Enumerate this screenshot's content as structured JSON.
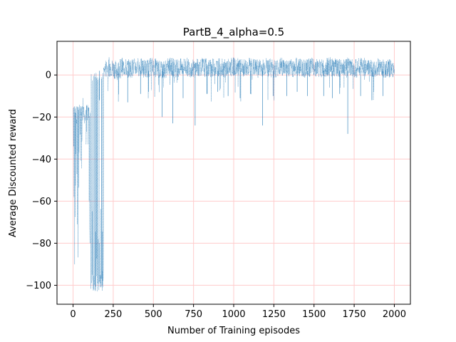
{
  "chart_data": {
    "type": "line",
    "title": "PartB_4_alpha=0.5",
    "xlabel": "Number of Training episodes",
    "ylabel": "Average Discounted reward",
    "xlim": [
      -100,
      2100
    ],
    "ylim": [
      -109,
      16
    ],
    "xticks": [
      0,
      250,
      500,
      750,
      1000,
      1250,
      1500,
      1750,
      2000
    ],
    "yticks": [
      -100,
      -80,
      -60,
      -40,
      -20,
      0
    ],
    "xtick_labels": [
      "0",
      "250",
      "500",
      "750",
      "1000",
      "1250",
      "1500",
      "1750",
      "2000"
    ],
    "ytick_labels": [
      "−100",
      "−80",
      "−60",
      "−40",
      "−20",
      "0"
    ],
    "grid": true,
    "grid_color": "#ffcccc",
    "line_color": "#1f77b4",
    "series": [
      {
        "x": [
          0,
          10,
          20,
          30,
          40,
          50,
          60,
          70,
          80,
          90,
          100,
          110,
          120,
          130,
          140,
          150,
          160,
          170,
          180,
          190,
          200,
          225,
          250,
          275,
          300,
          350,
          400,
          450,
          500,
          550,
          600,
          650,
          700,
          750,
          800,
          850,
          900,
          950,
          1000,
          1050,
          1100,
          1150,
          1200,
          1250,
          1300,
          1350,
          1400,
          1450,
          1500,
          1550,
          1600,
          1650,
          1700,
          1750,
          1800,
          1850,
          1900,
          1950,
          2000
        ],
        "values": [
          -10,
          -90,
          -15,
          -95,
          -12,
          -53,
          -10,
          -20,
          -35,
          -15,
          -60,
          -100,
          -102,
          -98,
          -104,
          -90,
          -95,
          -3,
          -93,
          2,
          3,
          4,
          3,
          2,
          4,
          3,
          4,
          3,
          4,
          2,
          4,
          3,
          4,
          3,
          4,
          3,
          4,
          3,
          4,
          3,
          4,
          3,
          4,
          3,
          4,
          3,
          4,
          3,
          4,
          3,
          4,
          3,
          4,
          3,
          4,
          3,
          4,
          3,
          3
        ]
      }
    ],
    "dips": [
      {
        "x": 165,
        "y": -12
      },
      {
        "x": 340,
        "y": -13
      },
      {
        "x": 420,
        "y": -9
      },
      {
        "x": 470,
        "y": -8
      },
      {
        "x": 555,
        "y": -20
      },
      {
        "x": 620,
        "y": -23
      },
      {
        "x": 685,
        "y": -11
      },
      {
        "x": 760,
        "y": -24
      },
      {
        "x": 835,
        "y": -9
      },
      {
        "x": 900,
        "y": -8
      },
      {
        "x": 965,
        "y": -10
      },
      {
        "x": 1040,
        "y": -11
      },
      {
        "x": 1105,
        "y": -9
      },
      {
        "x": 1180,
        "y": -24
      },
      {
        "x": 1245,
        "y": -10
      },
      {
        "x": 1330,
        "y": -10
      },
      {
        "x": 1395,
        "y": -8
      },
      {
        "x": 1460,
        "y": -10
      },
      {
        "x": 1560,
        "y": -10
      },
      {
        "x": 1615,
        "y": -11
      },
      {
        "x": 1660,
        "y": -9
      },
      {
        "x": 1710,
        "y": -28
      },
      {
        "x": 1790,
        "y": -10
      },
      {
        "x": 1860,
        "y": -12
      },
      {
        "x": 1930,
        "y": -10
      }
    ]
  }
}
